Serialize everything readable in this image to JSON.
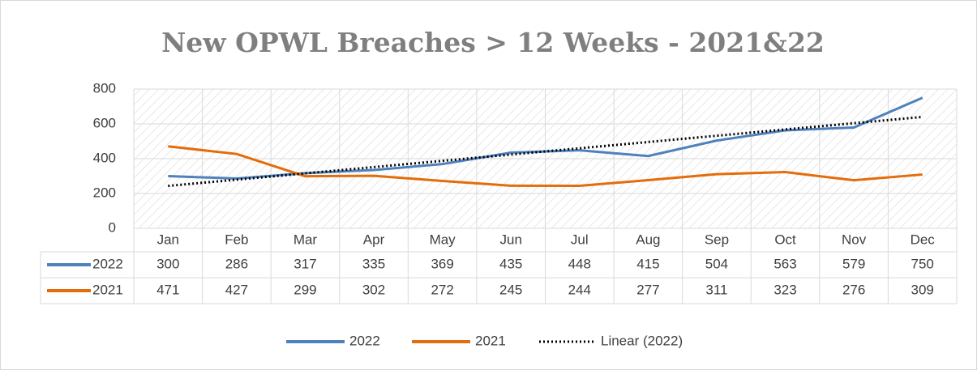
{
  "chart_data": {
    "type": "line",
    "title": "New OPWL Breaches > 12 Weeks - 2021&22",
    "categories": [
      "Jan",
      "Feb",
      "Mar",
      "Apr",
      "May",
      "Jun",
      "Jul",
      "Aug",
      "Sep",
      "Oct",
      "Nov",
      "Dec"
    ],
    "series": [
      {
        "name": "2022",
        "color": "#4f81bd",
        "values": [
          300,
          286,
          317,
          335,
          369,
          435,
          448,
          415,
          504,
          563,
          579,
          750
        ]
      },
      {
        "name": "2021",
        "color": "#e46c0a",
        "values": [
          471,
          427,
          299,
          302,
          272,
          245,
          244,
          277,
          311,
          323,
          276,
          309
        ]
      }
    ],
    "trendline": {
      "name": "Linear (2022)",
      "color": "#000000"
    },
    "ylim": [
      0,
      800
    ],
    "yticks": [
      0,
      200,
      400,
      600,
      800
    ],
    "grid": true,
    "legend": "bottom"
  }
}
